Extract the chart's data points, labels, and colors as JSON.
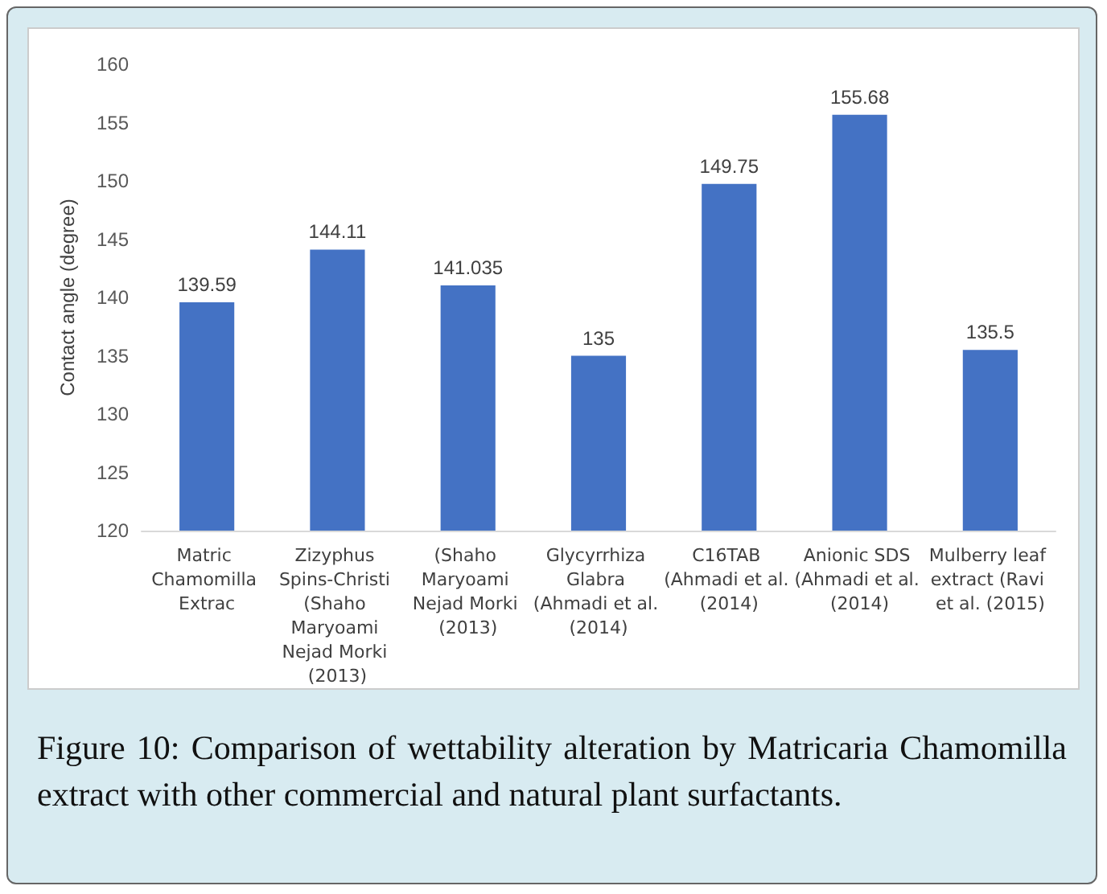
{
  "chart_data": {
    "type": "bar",
    "categories": [
      "Matric Chamomilla Extrac",
      "Zizyphus Spins-Christi (Shaho Maryoami Nejad Morki (2013)",
      "(Shaho Maryoami Nejad Morki (2013)",
      "Glycyrrhiza Glabra (Ahmadi et al. (2014)",
      "C16TAB (Ahmadi et al. (2014)",
      "Anionic SDS (Ahmadi et al. (2014)",
      "Mulberry leaf extract (Ravi et al. (2015)"
    ],
    "values": [
      139.59,
      144.11,
      141.035,
      135,
      149.75,
      155.68,
      135.5
    ],
    "color": "#4472c4",
    "ylabel": "Contact angle (degree)",
    "ylim": [
      120,
      160
    ],
    "yticks": [
      120,
      125,
      130,
      135,
      140,
      145,
      150,
      155,
      160
    ],
    "data_labels": true,
    "grid": false,
    "annotations": [
      "Figure 10: Comparison of wettability alteration by Matricaria Chamomilla extract with other commercial and natural plant surfactants."
    ]
  }
}
